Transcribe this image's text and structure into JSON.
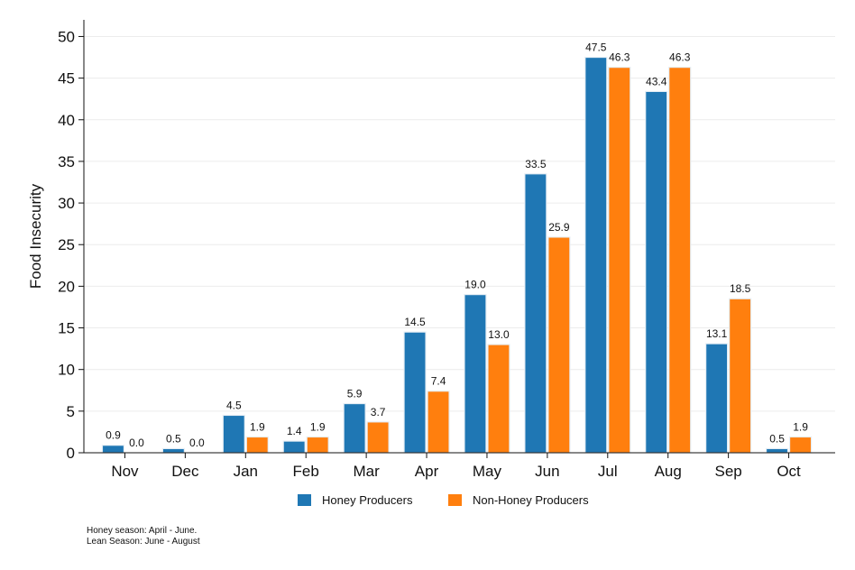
{
  "chart_data": {
    "type": "bar",
    "ylabel": "Food Insecurity",
    "xlabel": "",
    "ylim": [
      0,
      52
    ],
    "yticks": [
      0,
      5,
      10,
      15,
      20,
      25,
      30,
      35,
      40,
      45,
      50
    ],
    "grid": true,
    "legend_position": "bottom",
    "categories": [
      "Nov",
      "Dec",
      "Jan",
      "Feb",
      "Mar",
      "Apr",
      "May",
      "Jun",
      "Jul",
      "Aug",
      "Sep",
      "Oct"
    ],
    "series": [
      {
        "name": "Honey Producers",
        "color": "#1f77b4",
        "values": [
          0.9,
          0.5,
          4.5,
          1.4,
          5.9,
          14.5,
          19.0,
          33.5,
          47.5,
          43.4,
          13.1,
          0.5
        ]
      },
      {
        "name": "Non-Honey Producers",
        "color": "#ff7f0e",
        "values": [
          0.0,
          0.0,
          1.9,
          1.9,
          3.7,
          7.4,
          13.0,
          25.9,
          46.3,
          46.3,
          18.5,
          1.9
        ]
      }
    ]
  },
  "notes": [
    "Honey season: April - June.",
    "Lean Season: June - August"
  ]
}
